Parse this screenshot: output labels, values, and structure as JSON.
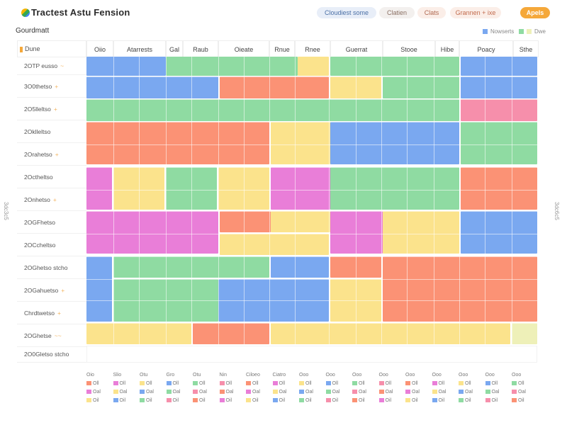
{
  "header": {
    "title": "Tractest Astu Fension",
    "search_label": "Cloudiest some",
    "btn2": "Clatien",
    "btn3": "Clats",
    "btn4": "Grannen + ixe",
    "primary": "Apels"
  },
  "subheader": {
    "label": "Gourdmatt",
    "legend_a": "Nowserts",
    "legend_b": "Dwe"
  },
  "grid": {
    "corner_label": "Dune",
    "columns": [
      "Oiio",
      "Atarrests",
      "Gal",
      "Raub",
      "Oieate",
      "Rnue",
      "Rnee",
      "Guerrat",
      "Stooe",
      "Hibe",
      "Poacy",
      "Sthe"
    ],
    "rows": [
      {
        "label": "2OTP eusso",
        "tag": "~"
      },
      {
        "label": "3O0thetso",
        "tag": "+"
      },
      {
        "label": "2O5lleltso",
        "tag": "+"
      },
      {
        "label": "2Oklleltso",
        "tag": ""
      },
      {
        "label": "2Orahetso",
        "tag": "+"
      },
      {
        "label": "2Octheltso",
        "tag": ""
      },
      {
        "label": "2Onhetso",
        "tag": "+"
      },
      {
        "label": "2OGFhetso",
        "tag": ""
      },
      {
        "label": "2OCcheltso",
        "tag": ""
      },
      {
        "label": "2OGhetso stcho",
        "tag": ""
      },
      {
        "label": "2OGahuetso",
        "tag": "+"
      },
      {
        "label": "Chrdtwetso",
        "tag": "+"
      },
      {
        "label": "2OGhetse",
        "tag": "~~"
      },
      {
        "label": "2O0Gletso stcho",
        "tag": ""
      }
    ]
  },
  "footer": {
    "columns": [
      {
        "head": "Oio",
        "items": [
          "Oll",
          "Oal",
          "Oil"
        ]
      },
      {
        "head": "Slio",
        "items": [
          "Oll",
          "Oal",
          "Oil"
        ]
      },
      {
        "head": "Otu",
        "items": [
          "Oll",
          "Oal",
          "Oil"
        ]
      },
      {
        "head": "Gro",
        "items": [
          "Oll",
          "Oal",
          "Oil"
        ]
      },
      {
        "head": "Otu",
        "items": [
          "Oll",
          "Oal",
          "Oil"
        ]
      },
      {
        "head": "Nin",
        "items": [
          "Oll",
          "Oal",
          "Oil"
        ]
      },
      {
        "head": "Ciloeo",
        "items": [
          "Oll",
          "Oal",
          "Oil"
        ]
      },
      {
        "head": "Ciatro",
        "items": [
          "Oll",
          "Oal",
          "Oil"
        ]
      },
      {
        "head": "Ooo",
        "items": [
          "Oll",
          "Oal",
          "Oil"
        ]
      },
      {
        "head": "Ooo",
        "items": [
          "Oll",
          "Oal",
          "Oil"
        ]
      },
      {
        "head": "Ooo",
        "items": [
          "Oll",
          "Oal",
          "Oil"
        ]
      },
      {
        "head": "Ooo",
        "items": [
          "Oll",
          "Oal",
          "Oil"
        ]
      },
      {
        "head": "Ooo",
        "items": [
          "Oll",
          "Oal",
          "Oil"
        ]
      },
      {
        "head": "Ooo",
        "items": [
          "Oll",
          "Oal",
          "Oil"
        ]
      },
      {
        "head": "Ooo",
        "items": [
          "Oll",
          "Oal",
          "Oil"
        ]
      },
      {
        "head": "Ooo",
        "items": [
          "Oll",
          "Oal",
          "Oil"
        ]
      },
      {
        "head": "Ooo",
        "items": [
          "Oll",
          "Oal",
          "Oil"
        ]
      }
    ]
  },
  "side": {
    "left": "3dc3c5",
    "right": "3dc6c5"
  },
  "colors": {
    "blue": "#7aa8f0",
    "green": "#8fdba2",
    "orange": "#fb9275",
    "yellow": "#fbe38c",
    "pink": "#f68fab",
    "magenta": "#e97ed8",
    "lime": "#eef0b8",
    "accent": "#f5a83a"
  }
}
